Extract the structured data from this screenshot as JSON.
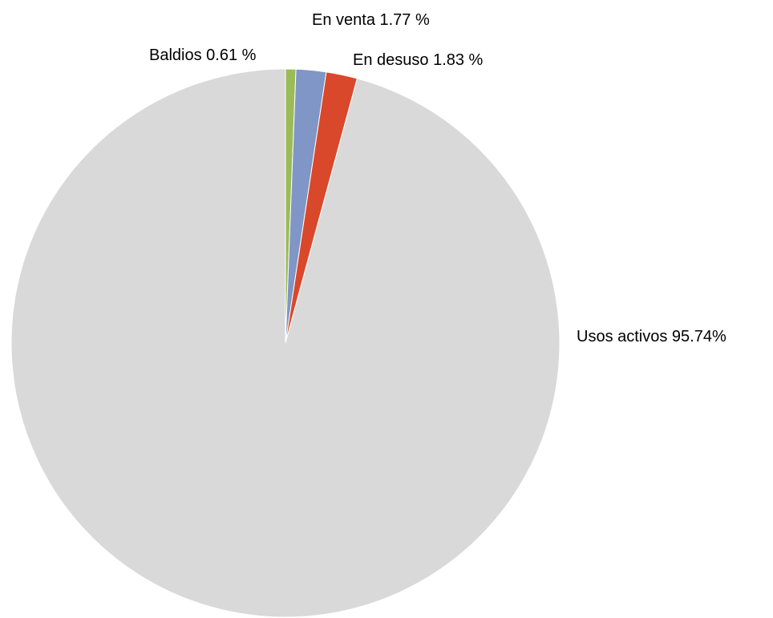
{
  "chart_data": {
    "type": "pie",
    "title": "",
    "slices": [
      {
        "name": "Baldios",
        "value": 0.61,
        "label": "Baldios 0.61 %",
        "color": "#9bbb59"
      },
      {
        "name": "En venta",
        "value": 1.77,
        "label": "En venta 1.77 %",
        "color": "#7f96c6"
      },
      {
        "name": "En desuso",
        "value": 1.83,
        "label": "En desuso 1.83 %",
        "color": "#d9482b"
      },
      {
        "name": "Usos activos",
        "value": 95.74,
        "label": "Usos activos 95.74%",
        "color": "#d9d9d9"
      }
    ],
    "start_angle": "12 o'clock",
    "direction": "clockwise",
    "legend": "none",
    "labels": "outside"
  }
}
